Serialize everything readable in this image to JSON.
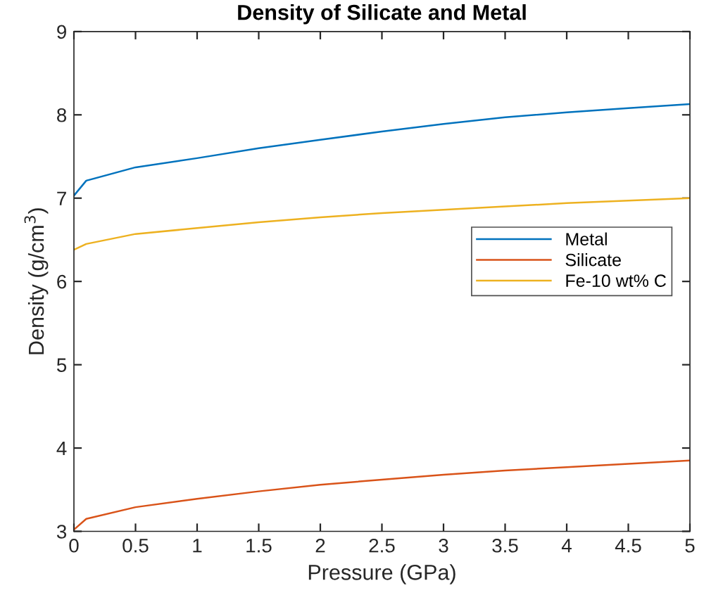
{
  "chart_data": {
    "type": "line",
    "title": "Density of Silicate and Metal",
    "xlabel": "Pressure (GPa)",
    "ylabel": "Density (g/cm$^{3}$)",
    "x": [
      0,
      0.1,
      0.5,
      1,
      1.5,
      2,
      2.5,
      3,
      3.5,
      4,
      4.5,
      5
    ],
    "series": [
      {
        "name": "Metal",
        "color": "#0072bd",
        "values": [
          7.03,
          7.21,
          7.37,
          7.48,
          7.6,
          7.7,
          7.8,
          7.89,
          7.97,
          8.03,
          8.08,
          8.13
        ]
      },
      {
        "name": "Silicate",
        "color": "#d95319",
        "values": [
          3.02,
          3.15,
          3.29,
          3.39,
          3.48,
          3.56,
          3.62,
          3.68,
          3.73,
          3.77,
          3.81,
          3.85
        ]
      },
      {
        "name": "Fe-10 wt% C",
        "color": "#edb120",
        "values": [
          6.38,
          6.45,
          6.57,
          6.64,
          6.71,
          6.77,
          6.82,
          6.86,
          6.9,
          6.94,
          6.97,
          7.0
        ]
      }
    ],
    "xlim": [
      0,
      5
    ],
    "ylim": [
      3,
      9
    ],
    "xticks": [
      0,
      0.5,
      1,
      1.5,
      2,
      2.5,
      3,
      3.5,
      4,
      4.5,
      5
    ],
    "yticks": [
      3,
      4,
      5,
      6,
      7,
      8,
      9
    ],
    "legend": "right",
    "grid": false,
    "marker": "none",
    "line_style": "solid"
  }
}
